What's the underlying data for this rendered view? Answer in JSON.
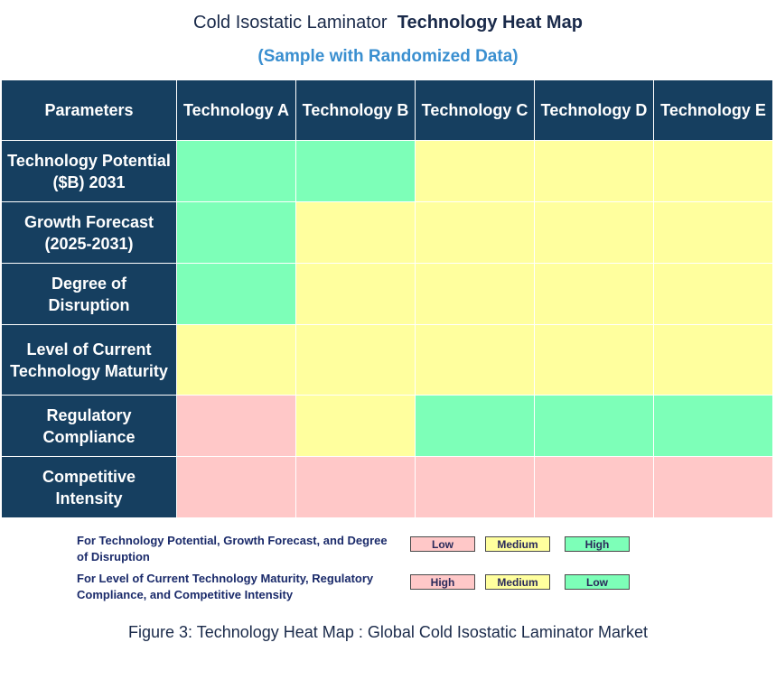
{
  "header": {
    "title_normal": "Cold Isostatic Laminator",
    "title_bold": "Technology Heat Map",
    "subtitle": "(Sample with Randomized Data)"
  },
  "colors": {
    "header_bg": "#163f60",
    "low_pink": "#ffc8c8",
    "medium_yellow": "#ffff9e",
    "high_green": "#7dffb8"
  },
  "chart_data": {
    "type": "heatmap",
    "corner_label": "Parameters",
    "columns": [
      "Technology A",
      "Technology B",
      "Technology C",
      "Technology D",
      "Technology E"
    ],
    "rows": [
      {
        "label": "Technology Potential ($B) 2031",
        "line1": "Technology Potential",
        "line2": "($B) 2031",
        "values": [
          "High",
          "High",
          "Medium",
          "Medium",
          "Medium"
        ],
        "height": 68
      },
      {
        "label": "Growth Forecast (2025-2031)",
        "line1": "Growth Forecast",
        "line2": "(2025-2031)",
        "values": [
          "High",
          "Medium",
          "Medium",
          "Medium",
          "Medium"
        ],
        "height": 68
      },
      {
        "label": "Degree of Disruption",
        "line1": "Degree of",
        "line2": "Disruption",
        "values": [
          "High",
          "Medium",
          "Medium",
          "Medium",
          "Medium"
        ],
        "height": 68
      },
      {
        "label": "Level of Current Technology Maturity",
        "line1": "Level of Current",
        "line2": "Technology Maturity",
        "values": [
          "Medium",
          "Medium",
          "Medium",
          "Medium",
          "Medium"
        ],
        "height": 78
      },
      {
        "label": "Regulatory Compliance",
        "line1": "Regulatory",
        "line2": "Compliance",
        "values": [
          "High",
          "Medium",
          "Low",
          "Low",
          "Low"
        ],
        "height": 68
      },
      {
        "label": "Competitive Intensity",
        "line1": "Competitive",
        "line2": "Intensity",
        "values": [
          "High",
          "High",
          "High",
          "High",
          "High"
        ],
        "height": 68
      }
    ],
    "cell_colors": [
      [
        "green",
        "green",
        "yellow",
        "yellow",
        "yellow"
      ],
      [
        "green",
        "yellow",
        "yellow",
        "yellow",
        "yellow"
      ],
      [
        "green",
        "yellow",
        "yellow",
        "yellow",
        "yellow"
      ],
      [
        "yellow",
        "yellow",
        "yellow",
        "yellow",
        "yellow"
      ],
      [
        "pink",
        "yellow",
        "green",
        "green",
        "green"
      ],
      [
        "pink",
        "pink",
        "pink",
        "pink",
        "pink"
      ]
    ]
  },
  "legend": {
    "group1_text": "For Technology Potential, Growth Forecast, and Degree of Disruption",
    "group1_items": [
      "Low",
      "Medium",
      "High"
    ],
    "group2_text": "For Level of Current Technology Maturity, Regulatory Compliance, and Competitive Intensity",
    "group2_items": [
      "High",
      "Medium",
      "Low"
    ]
  },
  "caption": "Figure 3: Technology Heat Map : Global Cold Isostatic Laminator Market"
}
